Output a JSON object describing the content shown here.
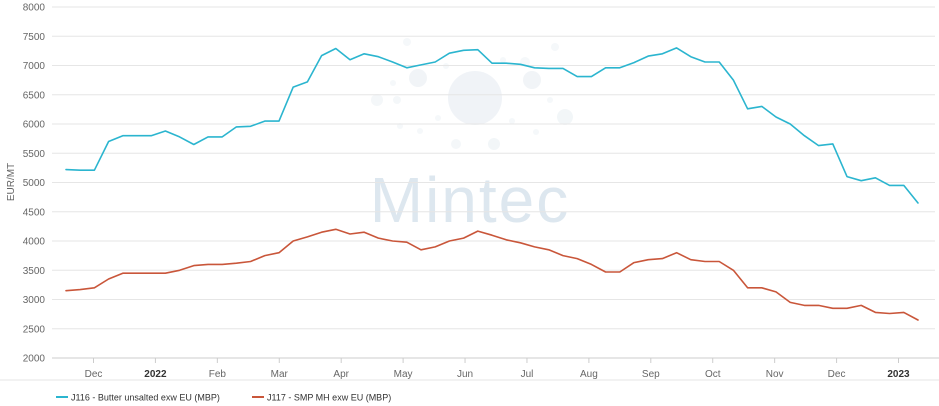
{
  "chart_data": {
    "type": "line",
    "title": "",
    "xlabel": "",
    "ylabel": "EUR/MT",
    "ylim": [
      2000,
      8000
    ],
    "yticks": [
      "8000",
      "7500",
      "7000",
      "6500",
      "6000",
      "5500",
      "5000",
      "4500",
      "4000",
      "3500",
      "3000",
      "2500",
      "2000"
    ],
    "xticks": [
      {
        "label": "Dec",
        "bold": false
      },
      {
        "label": "2022",
        "bold": true
      },
      {
        "label": "Feb",
        "bold": false
      },
      {
        "label": "Mar",
        "bold": false
      },
      {
        "label": "Apr",
        "bold": false
      },
      {
        "label": "May",
        "bold": false
      },
      {
        "label": "Jun",
        "bold": false
      },
      {
        "label": "Jul",
        "bold": false
      },
      {
        "label": "Aug",
        "bold": false
      },
      {
        "label": "Sep",
        "bold": false
      },
      {
        "label": "Oct",
        "bold": false
      },
      {
        "label": "Nov",
        "bold": false
      },
      {
        "label": "Dec",
        "bold": false
      },
      {
        "label": "2023",
        "bold": true
      }
    ],
    "grid": true,
    "legend_position": "bottom",
    "watermark": "Mintec",
    "series": [
      {
        "name": "J116 - Butter unsalted exw EU (MBP)",
        "color": "#2bb5cf",
        "values": [
          5220,
          5210,
          5210,
          5700,
          5800,
          5800,
          5800,
          5880,
          5780,
          5650,
          5780,
          5780,
          5950,
          5960,
          6050,
          6050,
          6630,
          6720,
          7170,
          7290,
          7100,
          7200,
          7150,
          7060,
          6960,
          7010,
          7060,
          7210,
          7260,
          7270,
          7040,
          7040,
          7020,
          6960,
          6950,
          6950,
          6810,
          6810,
          6960,
          6960,
          7050,
          7160,
          7200,
          7300,
          7150,
          7060,
          7060,
          6750,
          6260,
          6300,
          6120,
          6000,
          5800,
          5630,
          5660,
          5100,
          5030,
          5080,
          4950,
          4950,
          4650
        ]
      },
      {
        "name": "J117 - SMP MH exw EU (MBP)",
        "color": "#c9563a",
        "values": [
          3150,
          3170,
          3200,
          3350,
          3450,
          3450,
          3450,
          3450,
          3500,
          3580,
          3600,
          3600,
          3620,
          3650,
          3750,
          3800,
          4000,
          4070,
          4150,
          4200,
          4120,
          4150,
          4050,
          4000,
          3980,
          3850,
          3900,
          4000,
          4050,
          4170,
          4100,
          4020,
          3970,
          3900,
          3850,
          3750,
          3700,
          3600,
          3470,
          3470,
          3630,
          3680,
          3700,
          3800,
          3680,
          3650,
          3650,
          3500,
          3200,
          3200,
          3130,
          2950,
          2900,
          2900,
          2850,
          2850,
          2900,
          2780,
          2760,
          2780,
          2650
        ]
      }
    ]
  }
}
